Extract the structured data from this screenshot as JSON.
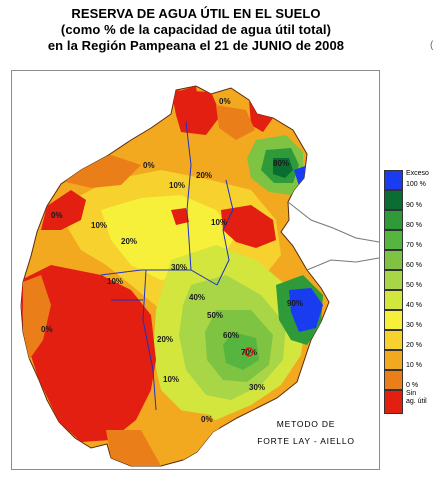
{
  "title": {
    "line1": "RESERVA DE AGUA ÚTIL EN EL SUELO",
    "line2": "(como % de la capacidad de agua útil total)",
    "line3": "en la Región Pampeana el 21 de JUNIO de 2008"
  },
  "stray_mark": "(",
  "legend": {
    "items": [
      {
        "label": "Exceso",
        "color": "#1a3cf0"
      },
      {
        "label": "100 %",
        "color": "#0a6e32"
      },
      {
        "label": "90 %",
        "color": "#2e9a3a"
      },
      {
        "label": "80 %",
        "color": "#55b53f"
      },
      {
        "label": "70 %",
        "color": "#7ec442"
      },
      {
        "label": "60 %",
        "color": "#a8d646"
      },
      {
        "label": "50 %",
        "color": "#d2e63e"
      },
      {
        "label": "40 %",
        "color": "#f6f03a"
      },
      {
        "label": "30 %",
        "color": "#f7d22e"
      },
      {
        "label": "20 %",
        "color": "#f2a91f"
      },
      {
        "label": "10 %",
        "color": "#ea7f1a"
      },
      {
        "label": "0 %",
        "color": "#e21f10"
      }
    ],
    "bottom_extra": [
      "Sin",
      "ag. útil"
    ]
  },
  "map": {
    "contour_labels": [
      "0%",
      "0%",
      "0%",
      "10%",
      "10%",
      "20%",
      "10%",
      "20%",
      "10%",
      "0%",
      "30%",
      "40%",
      "50%",
      "60%",
      "70%",
      "80%",
      "90%",
      "20%",
      "10%",
      "0%",
      "30%"
    ]
  },
  "method": {
    "line1": "METODO DE",
    "line2": "FORTE LAY - AIELLO"
  }
}
